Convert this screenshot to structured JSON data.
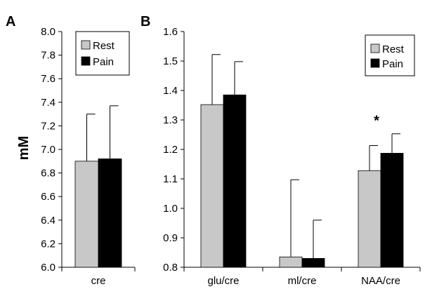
{
  "panels": [
    {
      "label": "A"
    },
    {
      "label": "B"
    }
  ],
  "shared_ylabel": "mM",
  "chart_data": [
    {
      "type": "bar",
      "panel": "A",
      "categories": [
        "cre"
      ],
      "series": [
        {
          "name": "Rest",
          "values": [
            6.9
          ],
          "errors": [
            0.4
          ],
          "color": "#c8c8c8"
        },
        {
          "name": "Pain",
          "values": [
            6.92
          ],
          "errors": [
            0.45
          ],
          "color": "#000000"
        }
      ],
      "ylim": [
        6.0,
        8.0
      ],
      "yticks": [
        "6.0",
        "6.2",
        "6.4",
        "6.6",
        "6.8",
        "7.0",
        "7.2",
        "7.4",
        "7.6",
        "7.8",
        "8.0"
      ],
      "legend": "top-left",
      "grid": false,
      "annotations": []
    },
    {
      "type": "bar",
      "panel": "B",
      "categories": [
        "glu/cre",
        "ml/cre",
        "NAA/cre"
      ],
      "series": [
        {
          "name": "Rest",
          "values": [
            1.352,
            0.835,
            1.128
          ],
          "errors": [
            0.17,
            0.262,
            0.085
          ],
          "color": "#c8c8c8"
        },
        {
          "name": "Pain",
          "values": [
            1.385,
            0.83,
            1.187
          ],
          "errors": [
            0.113,
            0.13,
            0.066
          ],
          "color": "#000000"
        }
      ],
      "ylim": [
        0.8,
        1.6
      ],
      "yticks": [
        "0.8",
        "0.9",
        "1.0",
        "1.1",
        "1.2",
        "1.3",
        "1.4",
        "1.5",
        "1.6"
      ],
      "legend": "top-right",
      "grid": false,
      "annotations": [
        {
          "text": "*",
          "category": "NAA/cre"
        }
      ]
    }
  ]
}
